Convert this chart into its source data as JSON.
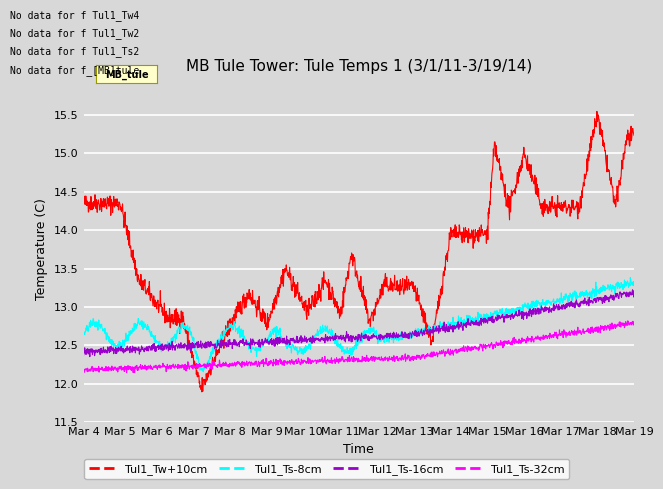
{
  "title": "MB Tule Tower: Tule Temps 1 (3/1/11-3/19/14)",
  "xlabel": "Time",
  "ylabel": "Temperature (C)",
  "ylim": [
    11.5,
    16.0
  ],
  "xlim": [
    0,
    15
  ],
  "xtick_labels": [
    "Mar 4",
    "Mar 5",
    "Mar 6",
    "Mar 7",
    "Mar 8",
    "Mar 9",
    "Mar 10",
    "Mar 11",
    "Mar 12",
    "Mar 13",
    "Mar 14",
    "Mar 15",
    "Mar 16",
    "Mar 17",
    "Mar 18",
    "Mar 19"
  ],
  "ytick_vals": [
    11.5,
    12.0,
    12.5,
    13.0,
    13.5,
    14.0,
    14.5,
    15.0,
    15.5
  ],
  "series_colors": [
    "red",
    "cyan",
    "#9900cc",
    "#ff00ff"
  ],
  "series_labels": [
    "Tul1_Tw+10cm",
    "Tul1_Ts-8cm",
    "Tul1_Ts-16cm",
    "Tul1_Ts-32cm"
  ],
  "background_color": "#d8d8d8",
  "plot_bg_color": "#d8d8d8",
  "no_data_texts": [
    "No data for f Tul1_Tw4",
    "No data for f Tul1_Tw2",
    "No data for f Tul1_Ts2",
    "No data for f_[MB]tule"
  ],
  "tooltip_text": "MB_tule",
  "legend_box_color": "#ffffcc",
  "legend_box_edge": "#999900",
  "title_fontsize": 11,
  "axis_label_fontsize": 9,
  "tick_fontsize": 8
}
